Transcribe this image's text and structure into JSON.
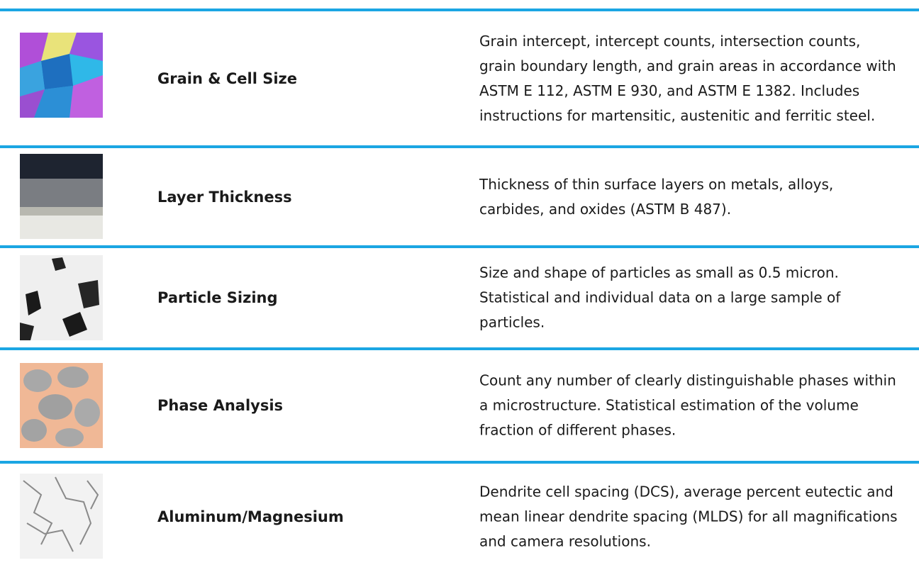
{
  "rows": [
    {
      "title": "Grain & Cell Size",
      "description": "Grain intercept, intercept counts, intersection counts, grain boundary length, and grain areas in accordance with ASTM E 112, ASTM E 930, and ASTM E 1382. Includes instructions for martensitic, austenitic and ferritic steel."
    },
    {
      "title": "Layer Thickness",
      "description": "Thickness of thin surface layers on metals, alloys, carbides, and oxides (ASTM B 487)."
    },
    {
      "title": "Particle Sizing",
      "description": "Size and shape of particles as small as 0.5 micron. Statistical and individual data on a large sample of particles."
    },
    {
      "title": "Phase Analysis",
      "description": "Count any number of clearly distinguishable phases within a microstructure. Statistical estimation of the volume fraction of different phases."
    },
    {
      "title": "Aluminum/Magnesium",
      "description": "Dendrite cell spacing (DCS), average percent eutectic and mean linear dendrite spacing (MLDS)  for all magnifications and camera resolutions."
    }
  ]
}
